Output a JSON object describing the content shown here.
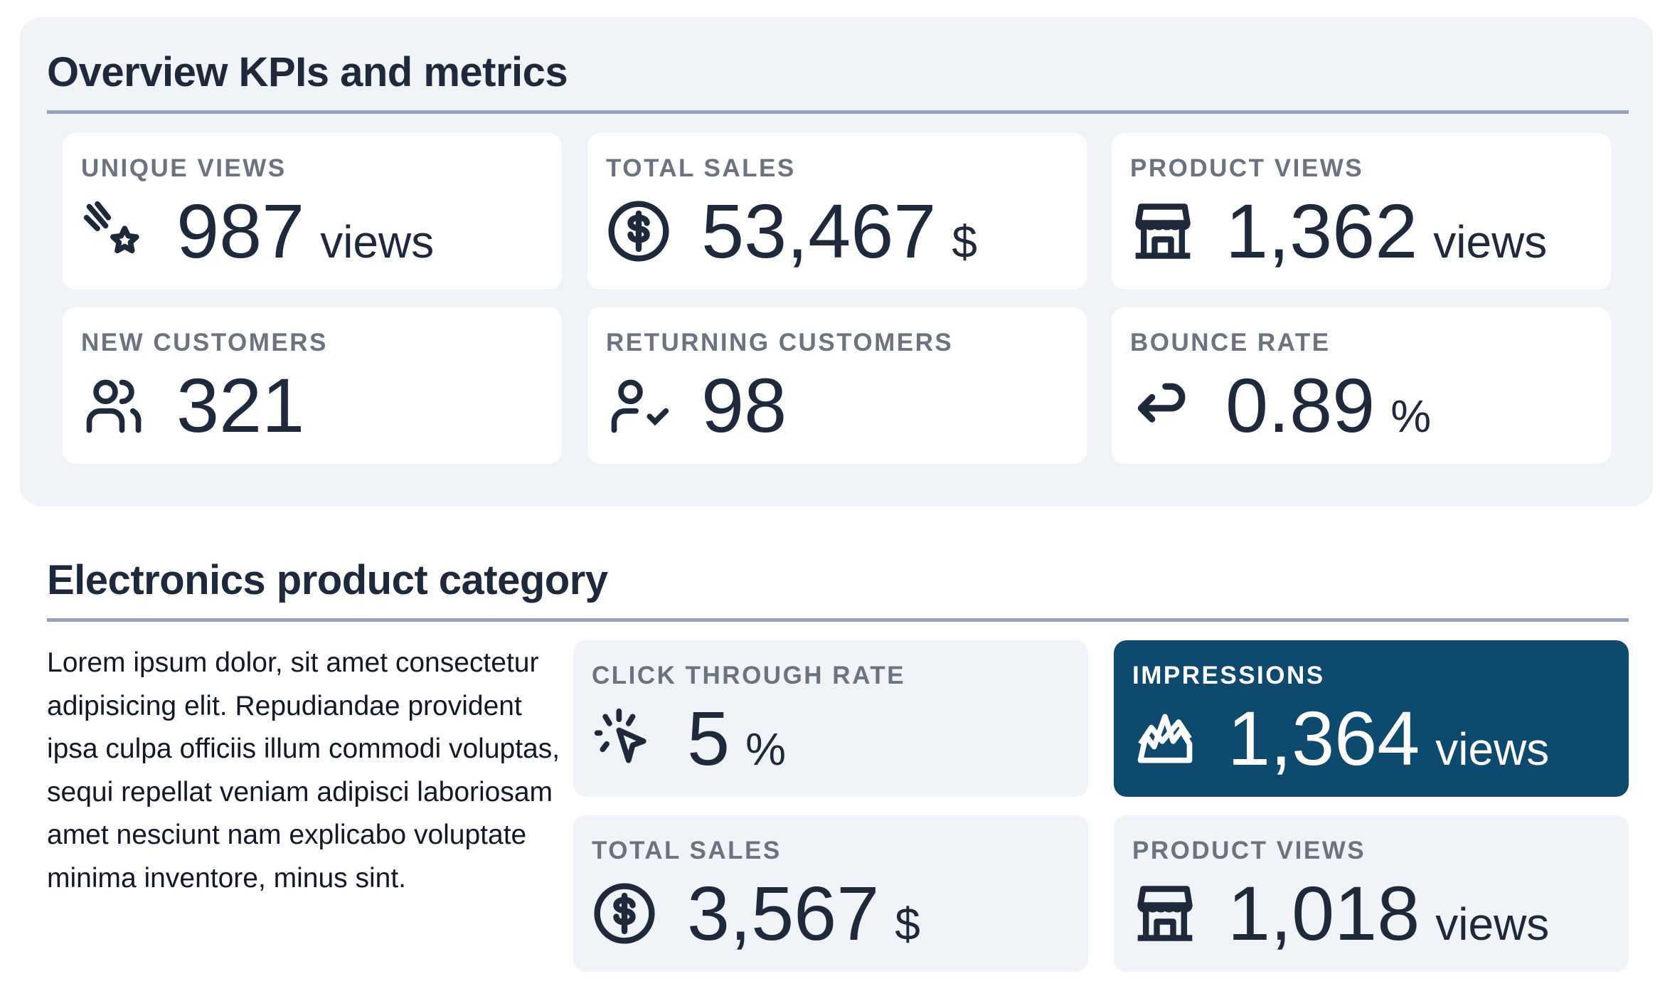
{
  "overview": {
    "title": "Overview KPIs and metrics",
    "cards": [
      {
        "label": "UNIQUE VIEWS",
        "value": "987",
        "unit": "views",
        "icon": "shooting-star-icon"
      },
      {
        "label": "TOTAL SALES",
        "value": "53,467",
        "unit": "$",
        "icon": "dollar-circle-icon"
      },
      {
        "label": "PRODUCT VIEWS",
        "value": "1,362",
        "unit": "views",
        "icon": "storefront-icon"
      },
      {
        "label": "NEW CUSTOMERS",
        "value": "321",
        "unit": "",
        "icon": "users-icon"
      },
      {
        "label": "RETURNING CUSTOMERS",
        "value": "98",
        "unit": "",
        "icon": "user-check-icon"
      },
      {
        "label": "BOUNCE RATE",
        "value": "0.89",
        "unit": "%",
        "icon": "return-arrow-icon"
      }
    ]
  },
  "electronics": {
    "title": "Electronics product category",
    "description": "Lorem ipsum dolor, sit amet consectetur adipisicing elit. Repudiandae provident ipsa culpa officiis illum commodi voluptas, sequi repellat veniam adipisci laboriosam amet nesciunt nam explicabo voluptate minima inventore, minus sint.",
    "cards": [
      {
        "label": "CLICK THROUGH RATE",
        "value": "5",
        "unit": "%",
        "icon": "cursor-click-icon"
      },
      {
        "label": "IMPRESSIONS",
        "value": "1,364",
        "unit": "views",
        "icon": "area-chart-icon"
      },
      {
        "label": "TOTAL SALES",
        "value": "3,567",
        "unit": "$",
        "icon": "dollar-circle-icon"
      },
      {
        "label": "PRODUCT VIEWS",
        "value": "1,018",
        "unit": "views",
        "icon": "storefront-icon"
      }
    ]
  },
  "colors": {
    "panel": "#f0f4f8",
    "accent": "#0e4a6e",
    "text": "#1e293b",
    "label": "#6b7280",
    "rule": "#94a3b8"
  }
}
